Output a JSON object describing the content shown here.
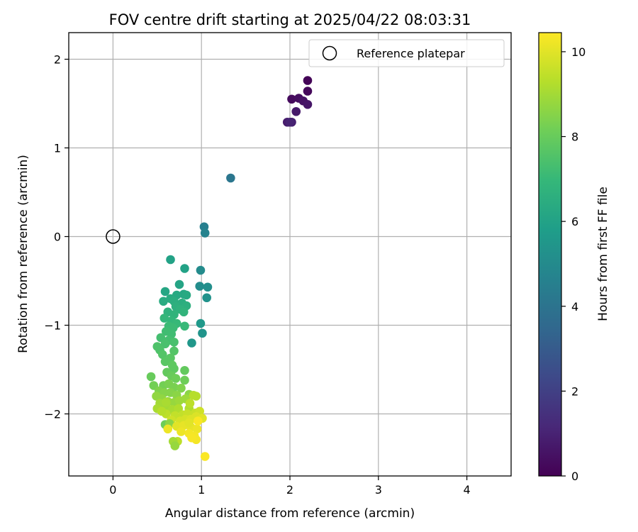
{
  "chart_data": {
    "type": "scatter",
    "title": "FOV centre drift starting at 2025/04/22 08:03:31",
    "xlabel": "Angular distance from reference (arcmin)",
    "ylabel": "Rotation from reference (arcmin)",
    "xlim": [
      -0.5,
      4.5
    ],
    "ylim": [
      -2.7,
      2.3
    ],
    "xticks": [
      0,
      1,
      2,
      3,
      4
    ],
    "xtick_labels": [
      "0",
      "1",
      "2",
      "3",
      "4"
    ],
    "yticks": [
      2,
      1,
      0,
      -1,
      -2
    ],
    "ytick_labels": [
      "2",
      "1",
      "0",
      "−1",
      "−2"
    ],
    "grid": true,
    "legend": {
      "placement": "top-right",
      "entries": [
        "Reference platepar"
      ]
    },
    "reference_point": {
      "name": "Reference platepar",
      "x": 0,
      "y": 0
    },
    "colorbar": {
      "label": "Hours from first FF file",
      "range": [
        0,
        10.45
      ],
      "ticks": [
        0,
        2,
        4,
        6,
        8,
        10
      ],
      "tick_labels": [
        "0",
        "2",
        "4",
        "6",
        "8",
        "10"
      ],
      "colormap": "viridis",
      "colors": [
        "#440154",
        "#482878",
        "#3e4989",
        "#31688e",
        "#26828e",
        "#1f9e89",
        "#35b779",
        "#6ece58",
        "#b5de2b",
        "#fde725"
      ]
    },
    "points": [
      [
        2.2,
        1.76,
        0.1
      ],
      [
        2.2,
        1.64,
        0.2
      ],
      [
        2.02,
        1.55,
        0.3
      ],
      [
        2.1,
        1.56,
        0.4
      ],
      [
        2.15,
        1.53,
        0.5
      ],
      [
        2.2,
        1.49,
        0.6
      ],
      [
        2.07,
        1.41,
        0.7
      ],
      [
        1.97,
        1.29,
        0.8
      ],
      [
        2.02,
        1.29,
        0.9
      ],
      [
        2.0,
        1.29,
        1.0
      ],
      [
        1.33,
        0.66,
        4.1
      ],
      [
        1.03,
        0.11,
        4.5
      ],
      [
        1.04,
        0.04,
        4.7
      ],
      [
        0.99,
        -0.38,
        5.0
      ],
      [
        0.98,
        -0.56,
        5.1
      ],
      [
        1.07,
        -0.57,
        5.2
      ],
      [
        1.06,
        -0.69,
        5.3
      ],
      [
        1.01,
        -1.09,
        5.4
      ],
      [
        0.89,
        -1.2,
        5.5
      ],
      [
        0.99,
        -0.98,
        5.6
      ],
      [
        0.65,
        -0.26,
        6.0
      ],
      [
        0.81,
        -0.36,
        6.0
      ],
      [
        0.75,
        -0.54,
        6.1
      ],
      [
        0.59,
        -0.62,
        6.2
      ],
      [
        0.8,
        -0.65,
        6.2
      ],
      [
        0.72,
        -0.66,
        6.3
      ],
      [
        0.83,
        -0.66,
        6.3
      ],
      [
        0.65,
        -0.7,
        6.4
      ],
      [
        0.57,
        -0.73,
        6.4
      ],
      [
        0.69,
        -0.73,
        6.5
      ],
      [
        0.78,
        -0.75,
        6.5
      ],
      [
        0.83,
        -0.78,
        6.6
      ],
      [
        0.71,
        -0.79,
        6.6
      ],
      [
        0.76,
        -0.82,
        6.7
      ],
      [
        0.62,
        -0.85,
        6.7
      ],
      [
        0.8,
        -0.85,
        6.8
      ],
      [
        0.69,
        -0.88,
        6.8
      ],
      [
        0.58,
        -0.92,
        6.9
      ],
      [
        0.66,
        -0.95,
        6.9
      ],
      [
        0.72,
        -0.98,
        7.0
      ],
      [
        0.81,
        -1.01,
        7.0
      ],
      [
        0.63,
        -1.01,
        7.1
      ],
      [
        0.68,
        -1.03,
        7.1
      ],
      [
        0.6,
        -1.07,
        7.2
      ],
      [
        0.66,
        -1.1,
        7.2
      ],
      [
        0.54,
        -1.14,
        7.3
      ],
      [
        0.63,
        -1.17,
        7.3
      ],
      [
        0.69,
        -1.19,
        7.4
      ],
      [
        0.59,
        -1.21,
        7.4
      ],
      [
        0.5,
        -1.24,
        7.5
      ],
      [
        0.53,
        -1.28,
        7.5
      ],
      [
        0.69,
        -1.29,
        7.6
      ],
      [
        0.56,
        -1.33,
        7.6
      ],
      [
        0.65,
        -1.37,
        7.7
      ],
      [
        0.59,
        -1.41,
        7.7
      ],
      [
        0.67,
        -1.45,
        7.8
      ],
      [
        0.69,
        -1.49,
        7.8
      ],
      [
        0.81,
        -1.51,
        7.9
      ],
      [
        0.61,
        -1.53,
        7.9
      ],
      [
        0.43,
        -1.58,
        8.0
      ],
      [
        0.66,
        -1.57,
        8.0
      ],
      [
        0.71,
        -1.6,
        8.1
      ],
      [
        0.81,
        -1.62,
        8.1
      ],
      [
        0.46,
        -1.68,
        8.2
      ],
      [
        0.57,
        -1.68,
        8.2
      ],
      [
        0.63,
        -1.66,
        8.3
      ],
      [
        0.69,
        -1.7,
        8.3
      ],
      [
        0.77,
        -1.71,
        8.4
      ],
      [
        0.52,
        -1.74,
        8.4
      ],
      [
        0.58,
        -1.76,
        8.5
      ],
      [
        0.65,
        -1.76,
        8.5
      ],
      [
        0.72,
        -1.79,
        8.6
      ],
      [
        0.86,
        -1.78,
        8.6
      ],
      [
        0.49,
        -1.8,
        8.7
      ],
      [
        0.55,
        -1.83,
        8.7
      ],
      [
        0.62,
        -1.86,
        8.8
      ],
      [
        0.69,
        -1.87,
        8.8
      ],
      [
        0.75,
        -1.85,
        8.9
      ],
      [
        0.82,
        -1.83,
        8.9
      ],
      [
        0.53,
        -1.88,
        9.0
      ],
      [
        0.6,
        -1.91,
        9.0
      ],
      [
        0.5,
        -1.94,
        9.1
      ],
      [
        0.67,
        -1.95,
        9.1
      ],
      [
        0.74,
        -1.94,
        9.2
      ],
      [
        0.86,
        -1.94,
        9.2
      ],
      [
        0.91,
        -1.79,
        9.3
      ],
      [
        0.94,
        -1.8,
        9.3
      ],
      [
        0.87,
        -1.88,
        9.4
      ],
      [
        0.6,
        -2.0,
        9.4
      ],
      [
        0.7,
        -2.02,
        9.5
      ],
      [
        0.79,
        -2.01,
        9.5
      ],
      [
        0.84,
        -2.0,
        9.6
      ],
      [
        0.93,
        -1.99,
        9.6
      ],
      [
        0.98,
        -1.97,
        9.7
      ],
      [
        0.66,
        -2.07,
        9.7
      ],
      [
        0.76,
        -2.08,
        9.8
      ],
      [
        0.82,
        -2.06,
        9.8
      ],
      [
        0.88,
        -2.06,
        9.9
      ],
      [
        0.94,
        -2.03,
        9.9
      ],
      [
        1.01,
        -2.05,
        10.0
      ],
      [
        0.59,
        -2.12,
        8.1
      ],
      [
        0.64,
        -2.11,
        8.6
      ],
      [
        0.72,
        -2.14,
        10.0
      ],
      [
        0.8,
        -2.13,
        10.1
      ],
      [
        0.88,
        -2.15,
        10.1
      ],
      [
        0.95,
        -2.17,
        10.2
      ],
      [
        0.62,
        -2.17,
        10.2
      ],
      [
        0.77,
        -2.2,
        10.2
      ],
      [
        0.86,
        -2.22,
        10.3
      ],
      [
        0.92,
        -2.25,
        10.3
      ],
      [
        0.94,
        -2.29,
        10.3
      ],
      [
        0.89,
        -2.27,
        10.35
      ],
      [
        0.73,
        -2.31,
        9.4
      ],
      [
        0.68,
        -2.31,
        9.0
      ],
      [
        0.7,
        -2.36,
        8.8
      ],
      [
        1.04,
        -2.48,
        10.4
      ],
      [
        0.96,
        -2.08,
        10.4
      ],
      [
        0.86,
        -2.1,
        10.0
      ],
      [
        0.55,
        -1.97,
        9.3
      ],
      [
        0.6,
        -1.87,
        9.1
      ]
    ]
  }
}
